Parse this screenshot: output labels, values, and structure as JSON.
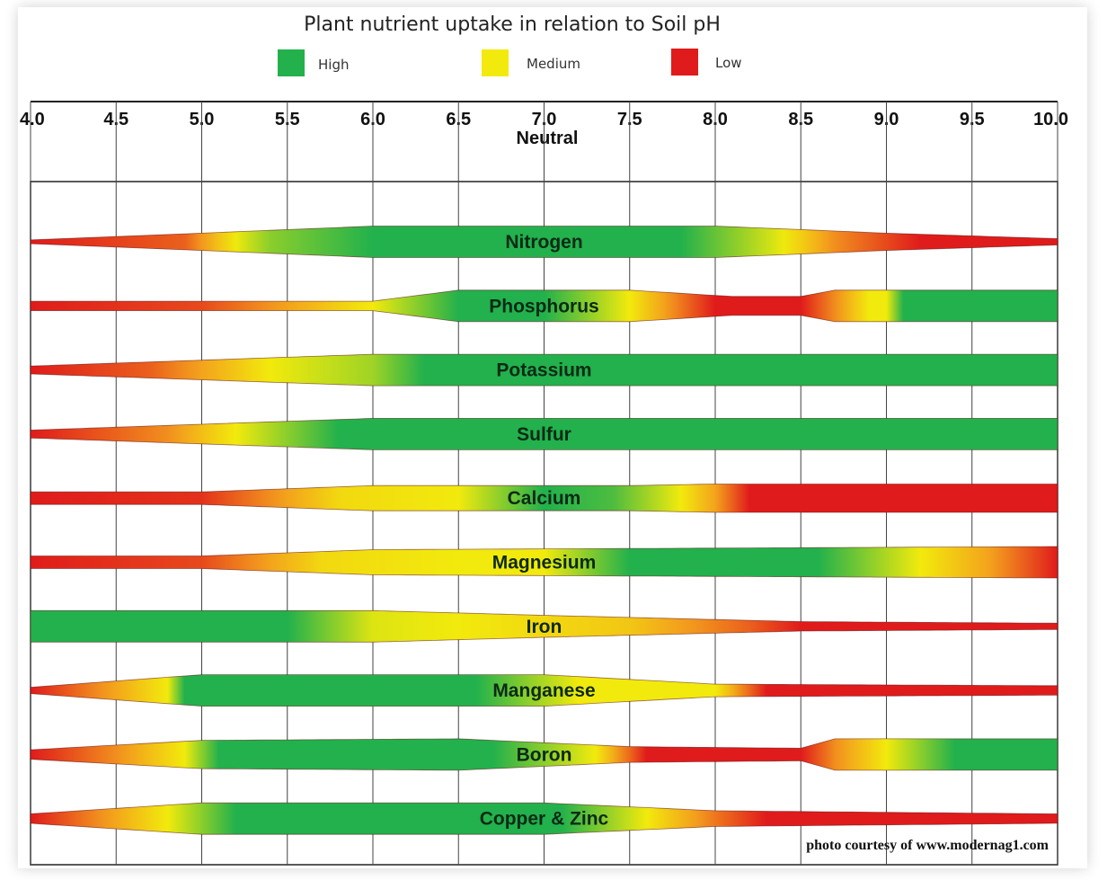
{
  "chart_data": {
    "type": "range-band",
    "title": "Plant nutrient uptake in relation to Soil pH",
    "legend": [
      {
        "label": "High",
        "color": "#22b14c"
      },
      {
        "label": "Medium",
        "color": "#f2ea0c"
      },
      {
        "label": "Low",
        "color": "#e01b1b"
      }
    ],
    "x_ticks": [
      "4.0",
      "4.5",
      "5.0",
      "5.5",
      "6.0",
      "6.5",
      "7.0",
      "7.5",
      "8.0",
      "8.5",
      "9.0",
      "9.5",
      "10.0"
    ],
    "x_range": [
      4.0,
      10.0
    ],
    "neutral_label": "Neutral",
    "credit": "photo courtesy of www.modernag1.com",
    "colors": {
      "high": "#22b14c",
      "medium": "#f2ea0c",
      "orange": "#f39a1e",
      "low": "#e01b1b"
    },
    "nutrients": [
      {
        "name": "Nitrogen",
        "width": [
          [
            4.0,
            0.12
          ],
          [
            5.0,
            0.55
          ],
          [
            6.0,
            1.0
          ],
          [
            8.0,
            1.0
          ],
          [
            9.0,
            0.55
          ],
          [
            10.0,
            0.2
          ]
        ],
        "level": [
          [
            4.0,
            0
          ],
          [
            4.9,
            0.3
          ],
          [
            5.4,
            1.5
          ],
          [
            6.0,
            2
          ],
          [
            7.8,
            2
          ],
          [
            8.3,
            1.2
          ],
          [
            8.7,
            0.5
          ],
          [
            9.2,
            0
          ],
          [
            10.0,
            0
          ]
        ]
      },
      {
        "name": "Phosphorus",
        "width": [
          [
            4.0,
            0.3
          ],
          [
            6.0,
            0.3
          ],
          [
            6.5,
            1.0
          ],
          [
            7.5,
            1.0
          ],
          [
            8.1,
            0.6
          ],
          [
            8.5,
            0.6
          ],
          [
            8.7,
            1.0
          ],
          [
            10.0,
            1.0
          ]
        ],
        "level": [
          [
            4.0,
            0
          ],
          [
            5.0,
            0.2
          ],
          [
            6.0,
            1.0
          ],
          [
            6.5,
            2
          ],
          [
            7.0,
            2
          ],
          [
            7.4,
            1.2
          ],
          [
            8.0,
            0
          ],
          [
            8.5,
            0
          ],
          [
            8.9,
            1
          ],
          [
            9.05,
            1
          ],
          [
            9.05,
            2
          ],
          [
            10.0,
            2
          ]
        ]
      },
      {
        "name": "Potassium",
        "width": [
          [
            4.0,
            0.25
          ],
          [
            6.0,
            1.0
          ],
          [
            10.0,
            1.0
          ]
        ],
        "level": [
          [
            4.0,
            0
          ],
          [
            4.7,
            0.3
          ],
          [
            5.4,
            1.0
          ],
          [
            6.0,
            1.4
          ],
          [
            6.3,
            2
          ],
          [
            10.0,
            2
          ]
        ]
      },
      {
        "name": "Sulfur",
        "width": [
          [
            4.0,
            0.25
          ],
          [
            6.0,
            1.0
          ],
          [
            10.0,
            1.0
          ]
        ],
        "level": [
          [
            4.0,
            0
          ],
          [
            4.8,
            0.5
          ],
          [
            5.2,
            1.0
          ],
          [
            5.8,
            2
          ],
          [
            10.0,
            2
          ]
        ]
      },
      {
        "name": "Calcium",
        "width": [
          [
            4.0,
            0.4
          ],
          [
            5.0,
            0.4
          ],
          [
            6.0,
            0.8
          ],
          [
            7.5,
            0.8
          ],
          [
            8.0,
            0.9
          ],
          [
            10.0,
            0.9
          ]
        ],
        "level": [
          [
            4.0,
            0
          ],
          [
            5.0,
            0.1
          ],
          [
            5.8,
            0.9
          ],
          [
            6.5,
            1.0
          ],
          [
            7.0,
            2
          ],
          [
            7.4,
            1.8
          ],
          [
            8.0,
            0.6
          ],
          [
            8.2,
            0
          ],
          [
            10.0,
            0
          ]
        ]
      },
      {
        "name": "Magnesium",
        "width": [
          [
            4.0,
            0.4
          ],
          [
            5.0,
            0.4
          ],
          [
            6.0,
            0.8
          ],
          [
            10.0,
            1.0
          ]
        ],
        "level": [
          [
            4.0,
            0
          ],
          [
            5.0,
            0.2
          ],
          [
            5.7,
            0.9
          ],
          [
            6.5,
            1.0
          ],
          [
            7.0,
            1.0
          ],
          [
            7.5,
            2
          ],
          [
            8.6,
            2
          ],
          [
            9.2,
            1.0
          ],
          [
            9.6,
            0.6
          ],
          [
            10.0,
            0
          ]
        ]
      },
      {
        "name": "Iron",
        "width": [
          [
            4.0,
            1.0
          ],
          [
            6.0,
            1.0
          ],
          [
            7.0,
            0.7
          ],
          [
            8.5,
            0.3
          ],
          [
            10.0,
            0.2
          ]
        ],
        "level": [
          [
            4.0,
            2
          ],
          [
            5.5,
            2
          ],
          [
            6.0,
            1.1
          ],
          [
            6.5,
            1.0
          ],
          [
            7.5,
            0.8
          ],
          [
            8.2,
            0.3
          ],
          [
            8.5,
            0
          ],
          [
            10.0,
            0
          ]
        ]
      },
      {
        "name": "Manganese",
        "width": [
          [
            4.0,
            0.2
          ],
          [
            5.0,
            1.0
          ],
          [
            7.0,
            1.0
          ],
          [
            8.0,
            0.4
          ],
          [
            10.0,
            0.3
          ]
        ],
        "level": [
          [
            4.0,
            0
          ],
          [
            4.4,
            0.5
          ],
          [
            4.8,
            1.0
          ],
          [
            4.9,
            2
          ],
          [
            6.6,
            2
          ],
          [
            7.2,
            1.0
          ],
          [
            8.0,
            1.0
          ],
          [
            8.3,
            0
          ],
          [
            10.0,
            0
          ]
        ]
      },
      {
        "name": "Boron",
        "width": [
          [
            4.0,
            0.3
          ],
          [
            5.0,
            0.9
          ],
          [
            6.5,
            1.0
          ],
          [
            7.5,
            0.5
          ],
          [
            8.5,
            0.4
          ],
          [
            8.7,
            1.0
          ],
          [
            10.0,
            1.0
          ]
        ],
        "level": [
          [
            4.0,
            0
          ],
          [
            4.5,
            0.5
          ],
          [
            4.9,
            1.0
          ],
          [
            5.1,
            2
          ],
          [
            6.7,
            2
          ],
          [
            7.3,
            1
          ],
          [
            7.6,
            0
          ],
          [
            8.5,
            0
          ],
          [
            8.7,
            0.5
          ],
          [
            9.0,
            1.0
          ],
          [
            9.4,
            2
          ],
          [
            10.0,
            2
          ]
        ]
      },
      {
        "name": "Copper & Zinc",
        "width": [
          [
            4.0,
            0.3
          ],
          [
            5.0,
            1.0
          ],
          [
            7.0,
            1.0
          ],
          [
            8.0,
            0.5
          ],
          [
            10.0,
            0.3
          ]
        ],
        "level": [
          [
            4.0,
            0
          ],
          [
            4.4,
            0.5
          ],
          [
            4.8,
            1.0
          ],
          [
            5.2,
            2
          ],
          [
            7.1,
            2
          ],
          [
            7.6,
            1.0
          ],
          [
            8.0,
            0.4
          ],
          [
            8.3,
            0
          ],
          [
            10.0,
            0
          ]
        ]
      }
    ]
  }
}
